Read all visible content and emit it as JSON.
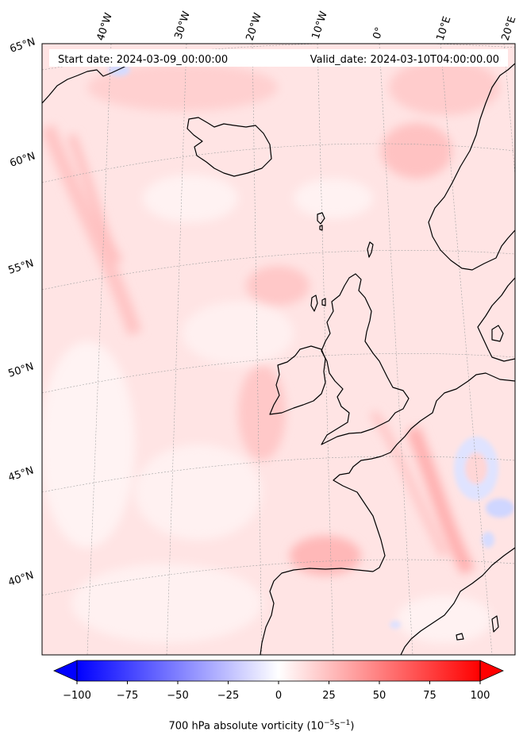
{
  "header": {
    "start_label": "Start date: 2024-03-09_00:00:00",
    "valid_label": "Valid_date: 2024-03-10T04:00:00.00"
  },
  "longitude_labels": [
    "40°W",
    "30°W",
    "20°W",
    "10°W",
    "0°",
    "10°E",
    "20°E"
  ],
  "latitude_labels": [
    "65°N",
    "60°N",
    "55°N",
    "50°N",
    "45°N",
    "40°N"
  ],
  "colorbar": {
    "ticks": [
      "−100",
      "−75",
      "−50",
      "−25",
      "0",
      "25",
      "50",
      "75",
      "100"
    ],
    "values": [
      -100,
      -75,
      -50,
      -25,
      0,
      25,
      50,
      75,
      100
    ],
    "range": [
      -100,
      100
    ],
    "title_main": "700 hPa absolute vorticity (10",
    "title_exp1": "−5",
    "title_mid": "s",
    "title_exp2": "−1",
    "title_end": ")",
    "colormap": "bwr",
    "low_color": "#0000ff",
    "mid_color": "#ffffff",
    "high_color": "#ff0000"
  },
  "map": {
    "field_base_color": "#ffe6e6",
    "coastline_color": "#000000",
    "gridline_color": "#9a9a9a"
  }
}
